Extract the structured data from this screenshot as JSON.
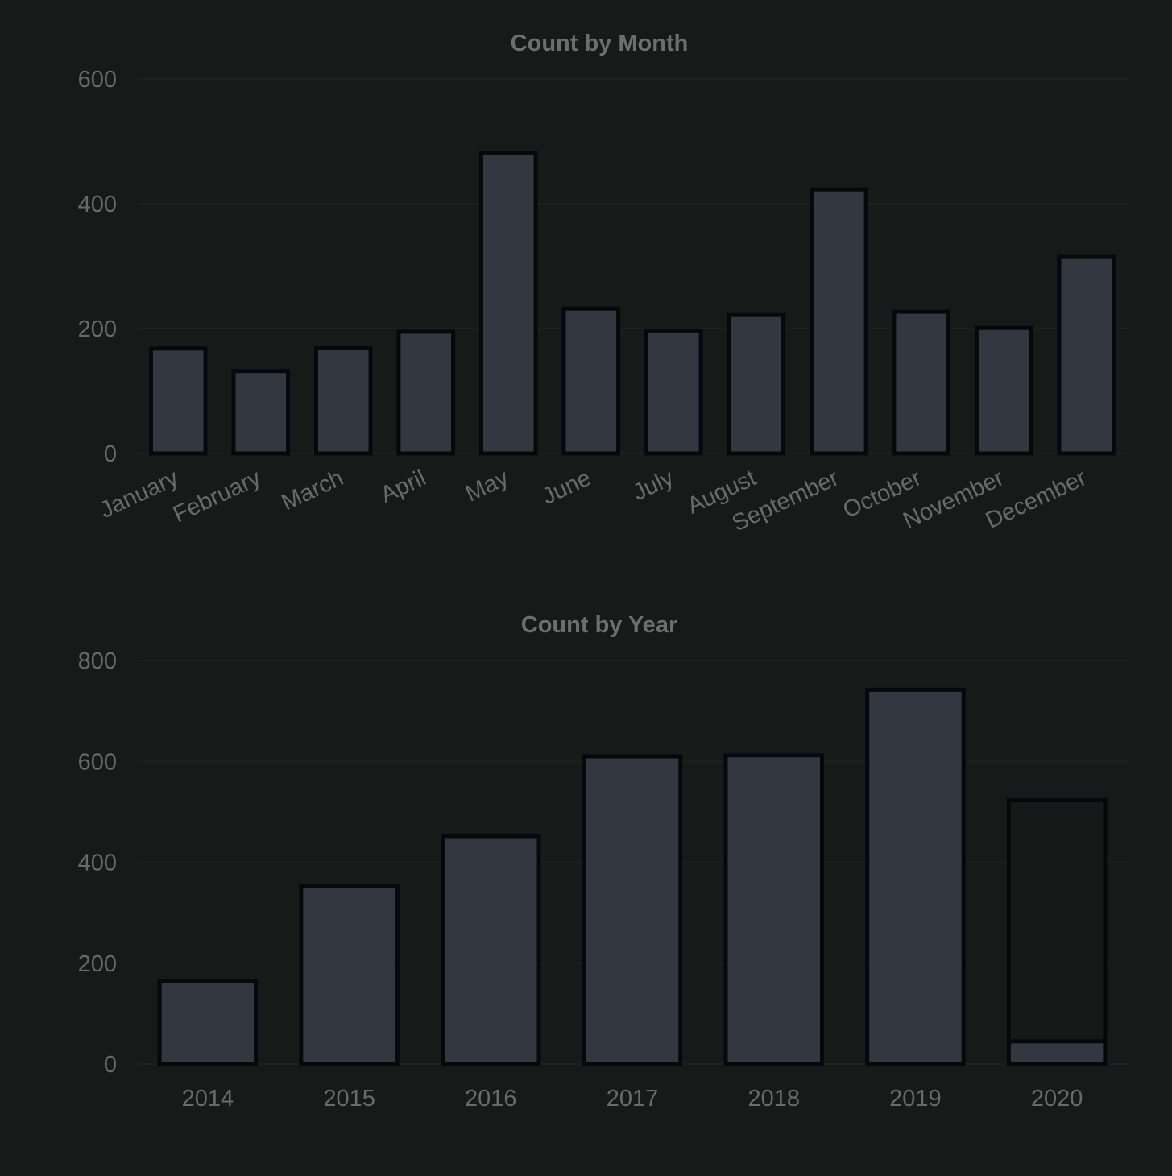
{
  "colors": {
    "background": "#181a1a",
    "bar_fill": "#333740",
    "bar_stroke": "#05080d",
    "outline_bar_fill": "#171818",
    "text": "#6e6e6e",
    "grid": "#1e2020"
  },
  "chart_data": [
    {
      "type": "bar",
      "title": "Count by Month",
      "xlabel": "",
      "ylabel": "",
      "categories": [
        "January",
        "February",
        "March",
        "April",
        "May",
        "June",
        "July",
        "August",
        "September",
        "October",
        "November",
        "December"
      ],
      "values": [
        168,
        132,
        169,
        195,
        482,
        232,
        197,
        223,
        423,
        227,
        201,
        316
      ],
      "ylim": [
        0,
        600
      ],
      "yticks": [
        0,
        200,
        400,
        600
      ],
      "grid": true,
      "legend": "none"
    },
    {
      "type": "bar",
      "title": "Count by Year",
      "xlabel": "",
      "ylabel": "",
      "categories": [
        "2014",
        "2015",
        "2016",
        "2017",
        "2018",
        "2019",
        "2020"
      ],
      "values": [
        164,
        353,
        452,
        610,
        612,
        742,
        45
      ],
      "outline_values": [
        null,
        null,
        null,
        null,
        null,
        null,
        523
      ],
      "ylim": [
        0,
        800
      ],
      "yticks": [
        0,
        200,
        400,
        600,
        800
      ],
      "grid": true,
      "legend": "none"
    }
  ]
}
